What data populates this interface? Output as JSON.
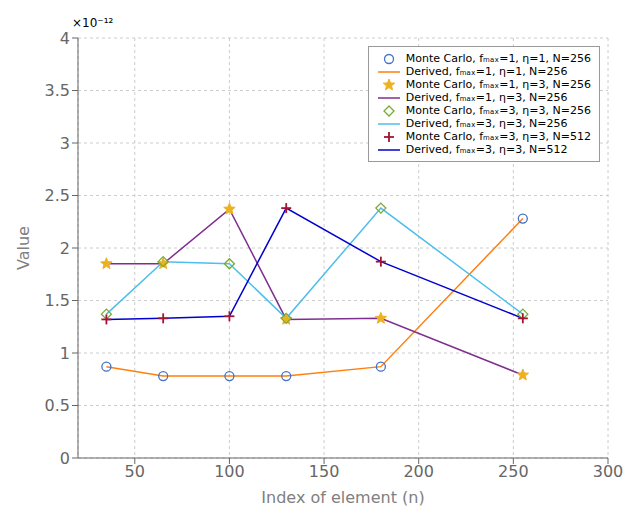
{
  "chart_data": {
    "type": "line",
    "xlabel": "Index of element (n)",
    "ylabel": "Value",
    "annotation": "×10⁻¹²",
    "x": [
      35,
      65,
      100,
      130,
      180,
      255
    ],
    "xlim": [
      20,
      300
    ],
    "xticks": [
      50,
      100,
      150,
      200,
      250,
      300
    ],
    "ylim": [
      0,
      4e-12
    ],
    "yticks": [
      0,
      {
        "value": 5e-13,
        "label": "0.5"
      },
      {
        "value": 1e-12,
        "label": "1"
      },
      {
        "value": 1.5e-12,
        "label": "1.5"
      },
      {
        "value": 2e-12,
        "label": "2"
      },
      {
        "value": 2.5e-12,
        "label": "2.5"
      },
      {
        "value": 3e-12,
        "label": "3"
      },
      {
        "value": 3.5e-12,
        "label": "3.5"
      },
      {
        "value": 4e-12,
        "label": "4"
      }
    ],
    "grid": true,
    "legend": "upper right",
    "series": [
      {
        "name": "Monte Carlo, fₘₐₓ=1, η=1, N=256",
        "type": "scatter",
        "marker": "circle",
        "color": "#4472C4",
        "values": [
          8.7e-13,
          7.8e-13,
          7.8e-13,
          7.8e-13,
          8.7e-13,
          2.28e-12
        ]
      },
      {
        "name": "Derived, fₘₐₓ=1, η=1, N=256",
        "type": "line",
        "line_style": "solid",
        "color": "#FF7F0E",
        "values": [
          8.7e-13,
          7.8e-13,
          7.8e-13,
          7.8e-13,
          8.7e-13,
          2.28e-12
        ]
      },
      {
        "name": "Monte Carlo, fₘₐₓ=1, η=3, N=256",
        "type": "scatter",
        "marker": "star",
        "color": "#EDB120",
        "values": [
          1.85e-12,
          1.85e-12,
          2.37e-12,
          1.32e-12,
          1.33e-12,
          7.9e-13
        ]
      },
      {
        "name": "Derived, fₘₐₓ=1, η=3, N=256",
        "type": "line",
        "line_style": "solid",
        "color": "#7E2F8E",
        "values": [
          1.85e-12,
          1.85e-12,
          2.37e-12,
          1.32e-12,
          1.33e-12,
          7.9e-13
        ]
      },
      {
        "name": "Monte Carlo, fₘₐₓ=3, η=3, N=256",
        "type": "scatter",
        "marker": "diamond",
        "color": "#77AC30",
        "values": [
          1.37e-12,
          1.87e-12,
          1.85e-12,
          1.33e-12,
          2.38e-12,
          1.37e-12
        ]
      },
      {
        "name": "Derived, fₘₐₓ=3, η=3, N=256",
        "type": "line",
        "line_style": "solid",
        "color": "#4DBEEE",
        "values": [
          1.37e-12,
          1.87e-12,
          1.85e-12,
          1.33e-12,
          2.38e-12,
          1.37e-12
        ]
      },
      {
        "name": "Monte Carlo, fₘₐₓ=3, η=3, N=512",
        "type": "scatter",
        "marker": "plus",
        "color": "#A2142F",
        "values": [
          1.32e-12,
          1.33e-12,
          1.35e-12,
          2.38e-12,
          1.87e-12,
          1.33e-12
        ]
      },
      {
        "name": "Derived, fₘₐₓ=3, η=3, N=512",
        "type": "line",
        "line_style": "solid",
        "color": "#0000CD",
        "values": [
          1.32e-12,
          1.33e-12,
          1.35e-12,
          2.38e-12,
          1.87e-12,
          1.33e-12
        ]
      }
    ]
  }
}
